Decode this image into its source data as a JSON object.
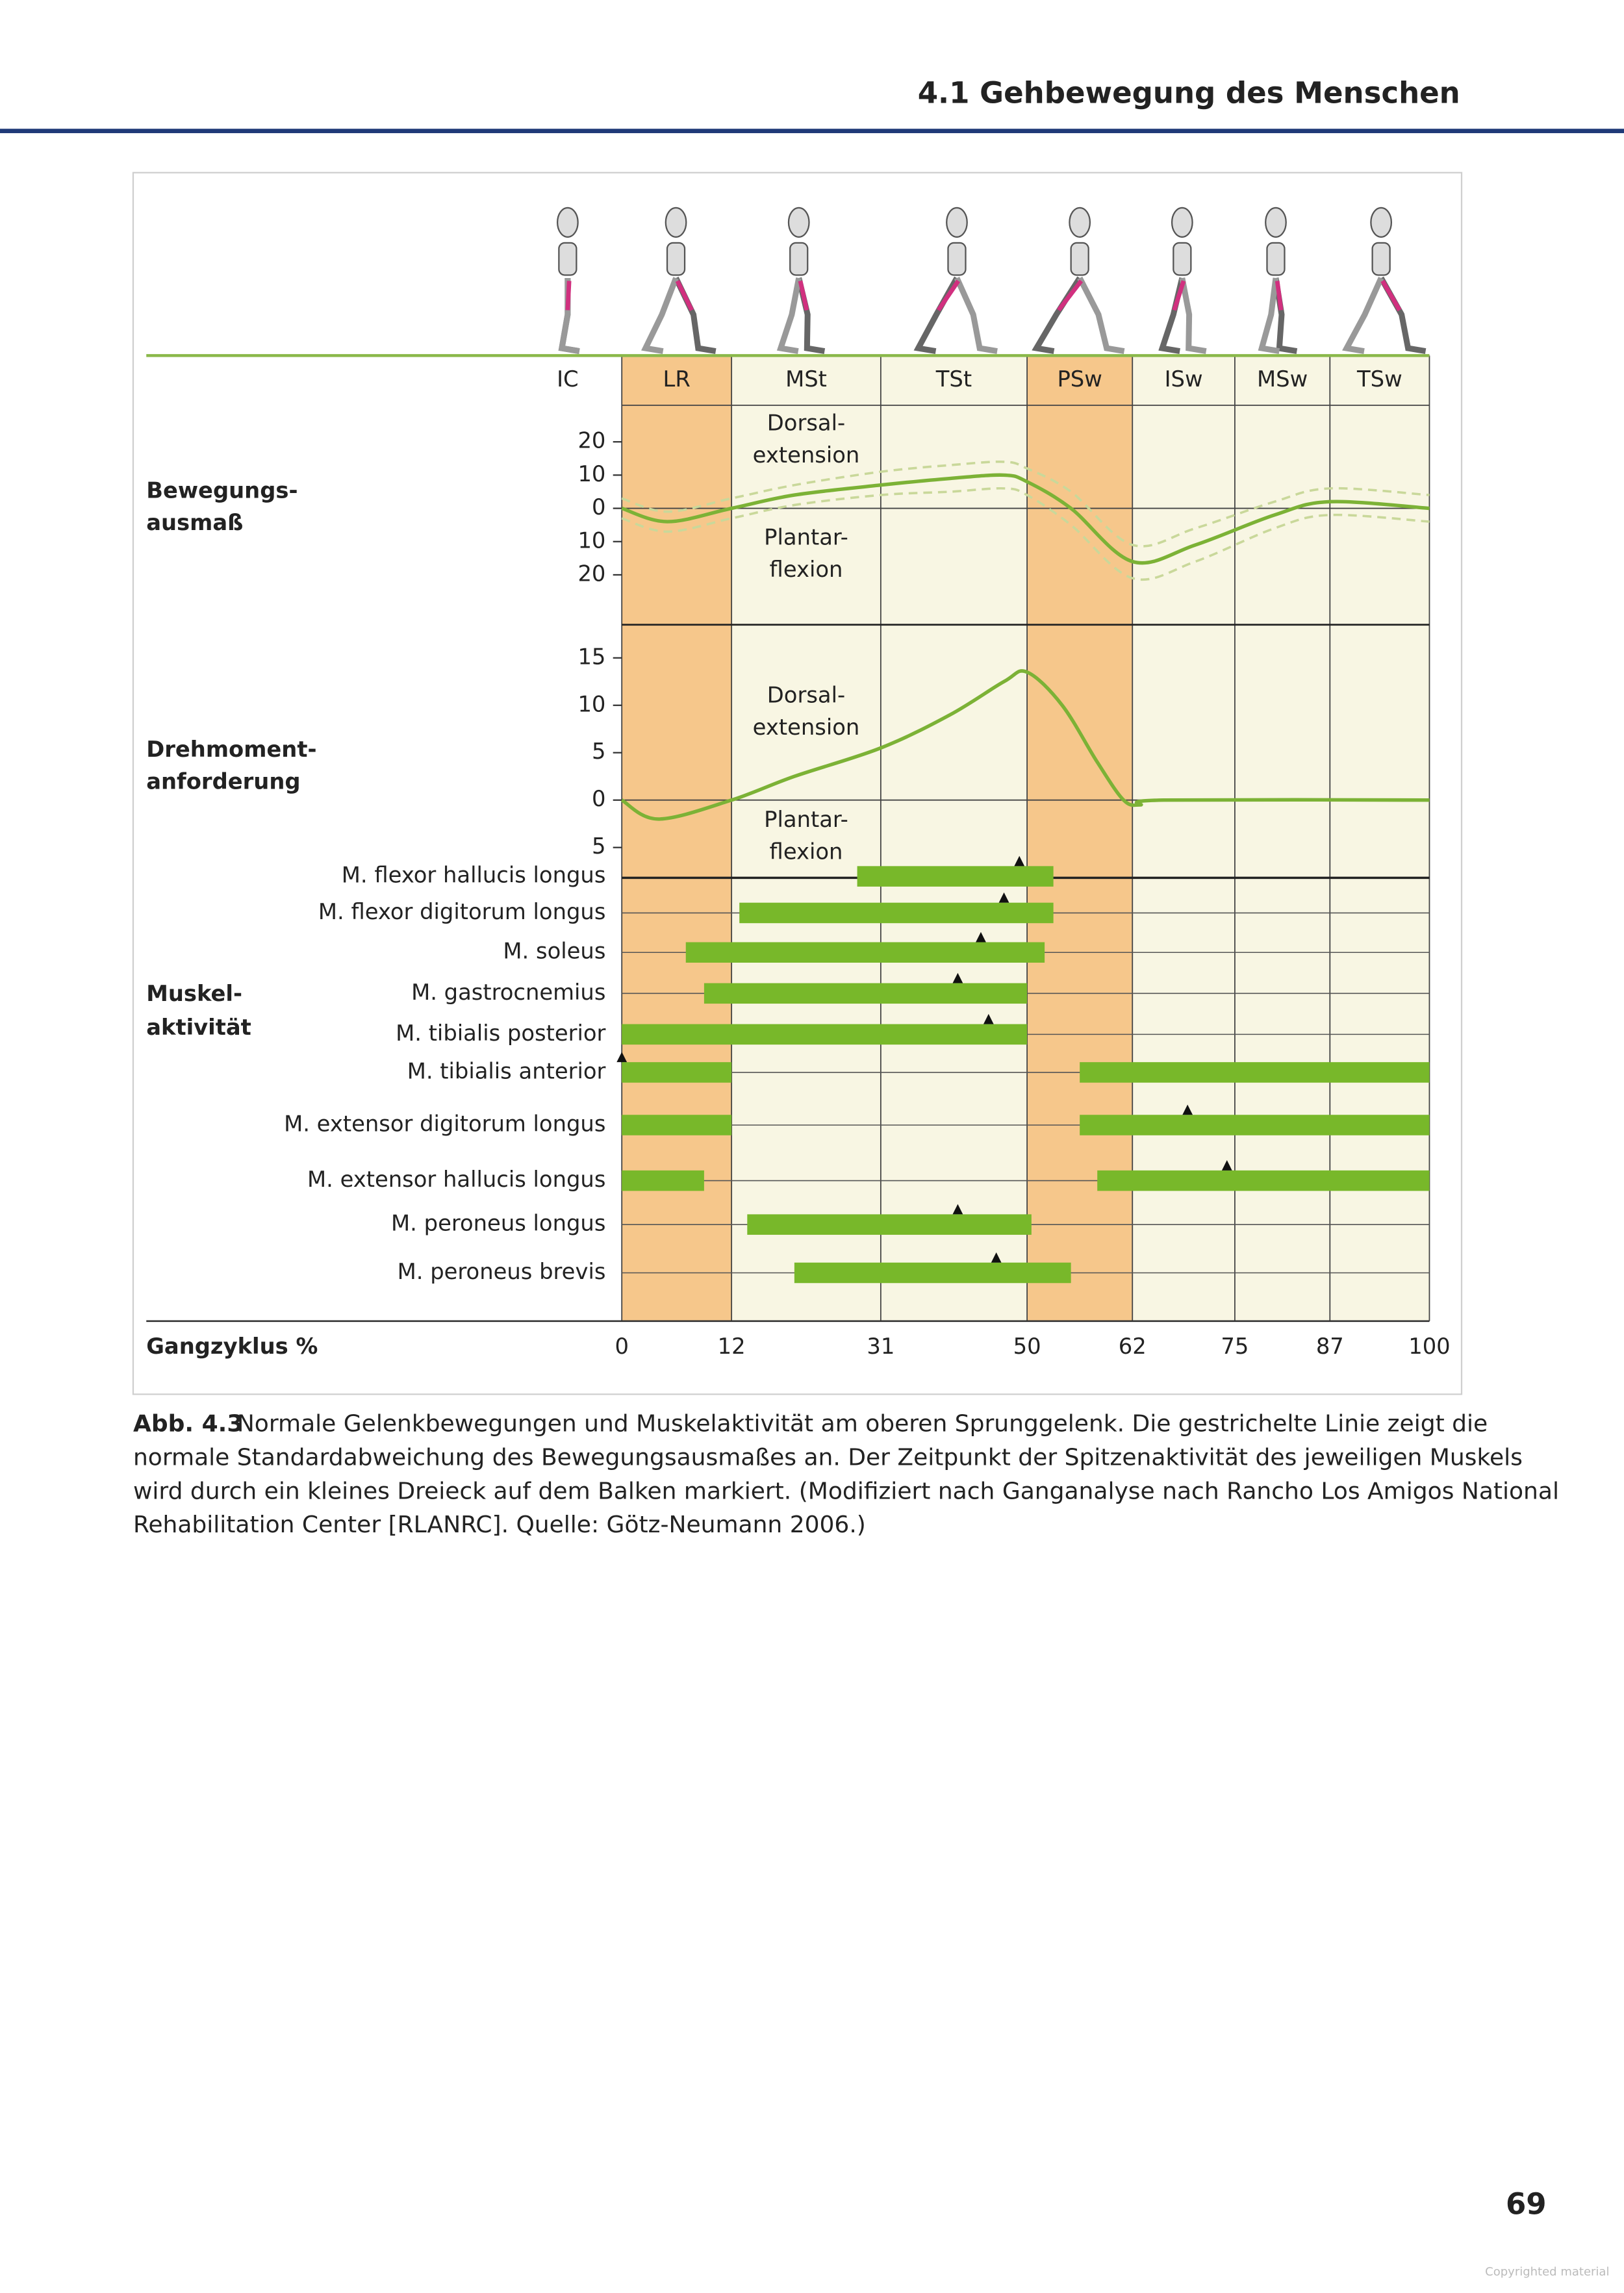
{
  "header": {
    "section": "4.1 Gehbewegung des Menschen"
  },
  "figure": {
    "phases": [
      {
        "label": "IC"
      },
      {
        "label": "LR",
        "color": "#f6c78b"
      },
      {
        "label": "MSt",
        "color": "#f8f6e3"
      },
      {
        "label": "TSt",
        "color": "#f8f6e3"
      },
      {
        "label": "PSw",
        "color": "#f6c78b"
      },
      {
        "label": "ISw",
        "color": "#f8f6e3"
      },
      {
        "label": "MSw",
        "color": "#f8f6e3"
      },
      {
        "label": "TSw",
        "color": "#f8f6e3"
      }
    ],
    "xlabel": "Gangzyklus %",
    "xticks": [
      0,
      12,
      31,
      50,
      62,
      75,
      87,
      100
    ],
    "motion": {
      "label": [
        "Bewegungs-",
        "ausmaß"
      ],
      "dorsal": [
        "Dorsal-",
        "extension"
      ],
      "plantar": [
        "Plantar-",
        "flexion"
      ],
      "ylim": [
        -35,
        31
      ],
      "yticks": [
        20,
        10,
        0,
        {
          "value": -10,
          "label": "10"
        },
        {
          "value": -20,
          "label": "20"
        }
      ],
      "x": [
        0,
        5,
        12,
        20,
        31,
        40,
        47,
        50,
        55,
        62,
        70,
        80,
        87,
        100
      ],
      "values": [
        0,
        -4,
        0,
        4,
        7,
        9,
        10,
        8,
        0,
        -16,
        -11,
        -2,
        2,
        0
      ],
      "upper": [
        3,
        -1,
        3,
        7,
        11,
        13,
        14,
        12,
        5,
        -11,
        -6,
        2,
        6,
        4
      ],
      "lower": [
        -3,
        -7,
        -3,
        1,
        4,
        5,
        6,
        4,
        -5,
        -21,
        -16,
        -6,
        -2,
        -4
      ],
      "color": "#7cb236",
      "band_color": "#c9d89a"
    },
    "torque": {
      "label": [
        "Drehmoment-",
        "anforderung"
      ],
      "dorsal": [
        "Dorsal-",
        "extension"
      ],
      "plantar": [
        "Plantar-",
        "flexion"
      ],
      "ylim": [
        -8.2,
        18.5
      ],
      "yticks": [
        15,
        10,
        5,
        0,
        {
          "value": -5,
          "label": "5"
        }
      ],
      "x": [
        0,
        4,
        12,
        20,
        31,
        40,
        47,
        50,
        54,
        58,
        61,
        63,
        66,
        100
      ],
      "values": [
        0,
        -2,
        0,
        2.5,
        5.5,
        9,
        12.5,
        13.5,
        10,
        4,
        0,
        -0.5,
        0,
        0
      ],
      "color": "#7cb236"
    },
    "muscles": {
      "label": [
        "Muskel-",
        "aktivität"
      ],
      "color": "#78b82a",
      "rows": [
        {
          "name": "M. flexor hallucis longus",
          "bars": [
            [
              28,
              53
            ]
          ],
          "peak": 49
        },
        {
          "name": "M. flexor digitorum longus",
          "bars": [
            [
              13,
              53
            ]
          ],
          "peak": 47
        },
        {
          "name": "M. soleus",
          "bars": [
            [
              7,
              52
            ]
          ],
          "peak": 44
        },
        {
          "name": "M. gastrocnemius",
          "bars": [
            [
              9,
              50
            ]
          ],
          "peak": 41
        },
        {
          "name": "M. tibialis posterior",
          "bars": [
            [
              0,
              50
            ]
          ],
          "peak": 45
        },
        {
          "name": "M. tibialis anterior",
          "bars": [
            [
              0,
              12
            ],
            [
              56,
              100
            ]
          ],
          "peak": 0
        },
        {
          "name": "M. extensor digitorum longus",
          "bars": [
            [
              0,
              12
            ],
            [
              56,
              100
            ]
          ],
          "peak": 69
        },
        {
          "name": "M. extensor hallucis longus",
          "bars": [
            [
              0,
              9
            ],
            [
              58,
              100
            ]
          ],
          "peak": 74
        },
        {
          "name": "M. peroneus longus",
          "bars": [
            [
              14,
              50.5
            ]
          ],
          "peak": 41
        },
        {
          "name": "M. peroneus brevis",
          "bars": [
            [
              20,
              55
            ]
          ],
          "peak": 46
        }
      ]
    }
  },
  "caption": {
    "label": "Abb. 4.3",
    "lines": [
      "Normale Gelenkbewegungen und Muskelaktivität am oberen Sprunggelenk. Die gestrichelte Linie zeigt die",
      "normale Standardabweichung des Bewegungsausmaßes an. Der Zeitpunkt der Spitzenaktivität des jeweiligen Muskels",
      "wird durch ein kleines Dreieck auf dem Balken markiert. (Modifiziert nach Ganganalyse nach Rancho Los Amigos National",
      "Rehabilitation Center [RLANRC]. Quelle: Götz-Neumann 2006.)"
    ]
  },
  "page_number": "69",
  "watermark": "Copyrighted material"
}
